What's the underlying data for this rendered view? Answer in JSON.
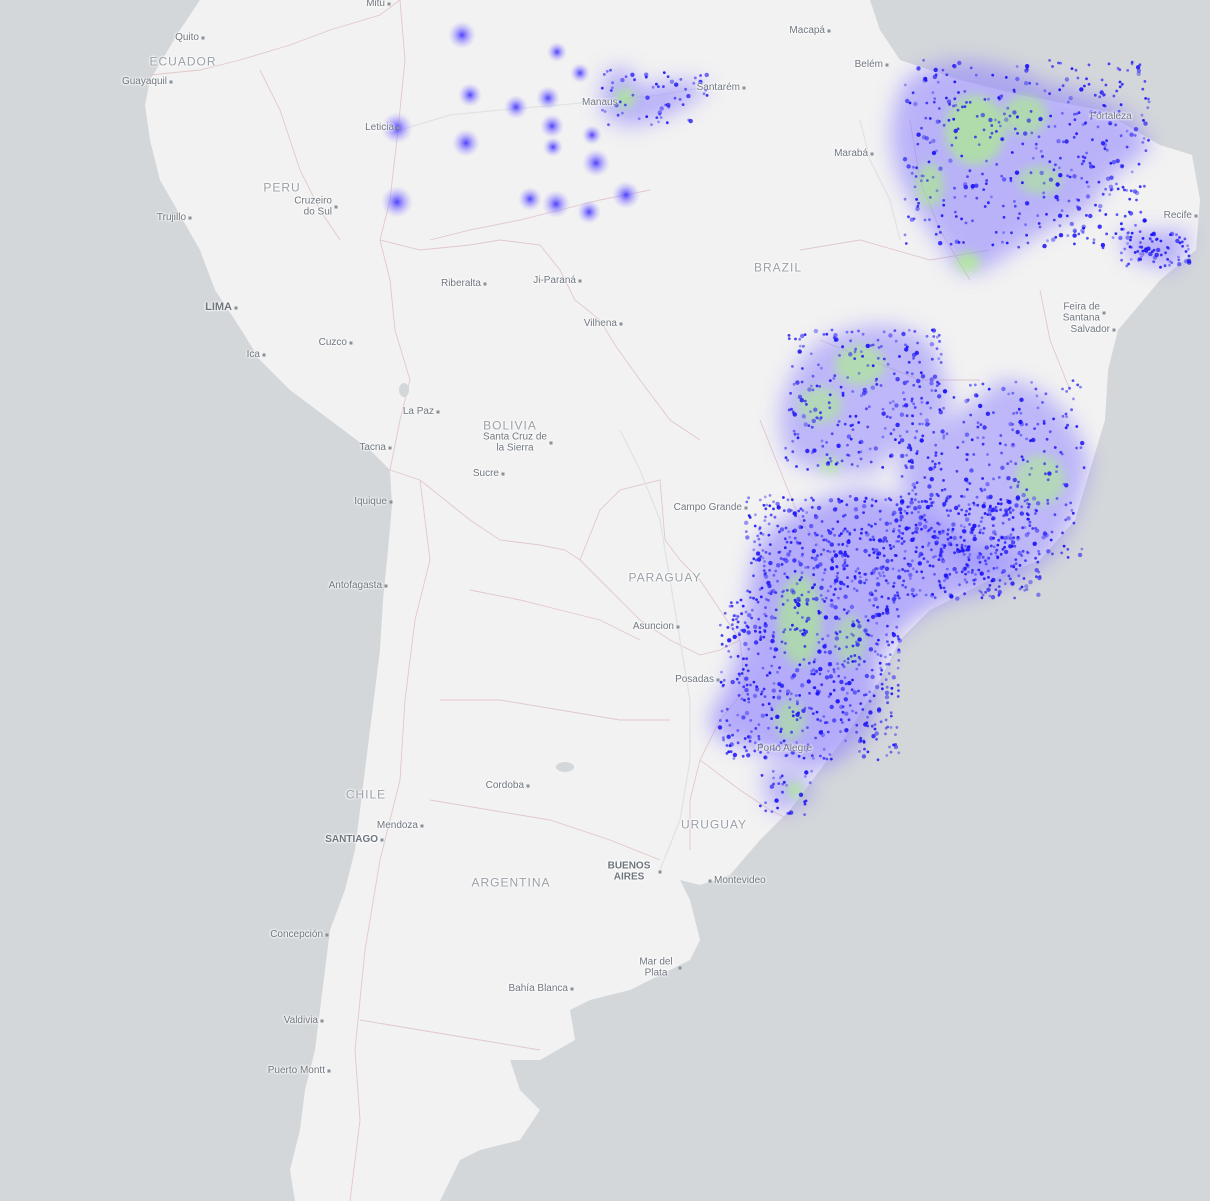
{
  "map": {
    "colors": {
      "ocean": "#d4d7da",
      "land": "#f2f2f2",
      "border": "#e1c7cd",
      "heat_low": "#7a6cff",
      "heat_mid": "#a8ff6a",
      "point": "#1a12f5"
    },
    "countries": [
      {
        "id": "ecuador",
        "name": "ECUADOR"
      },
      {
        "id": "peru",
        "name": "PERU"
      },
      {
        "id": "brazil",
        "name": "BRAZIL"
      },
      {
        "id": "bolivia",
        "name": "BOLIVIA"
      },
      {
        "id": "paraguay",
        "name": "PARAGUAY"
      },
      {
        "id": "chile",
        "name": "CHILE"
      },
      {
        "id": "argentina",
        "name": "ARGENTINA"
      },
      {
        "id": "uruguay",
        "name": "URUGUAY"
      }
    ],
    "cities": [
      {
        "id": "mitu",
        "name": "Mitú",
        "capital": false
      },
      {
        "id": "quito",
        "name": "Quito",
        "capital": false
      },
      {
        "id": "guayaquil",
        "name": "Guayaquil",
        "capital": false
      },
      {
        "id": "leticia",
        "name": "Leticia",
        "capital": false
      },
      {
        "id": "manaus",
        "name": "Manaus",
        "capital": false
      },
      {
        "id": "santarem",
        "name": "Santarém",
        "capital": false
      },
      {
        "id": "macapa",
        "name": "Macapá",
        "capital": false
      },
      {
        "id": "belem",
        "name": "Belém",
        "capital": false
      },
      {
        "id": "maraba",
        "name": "Marabá",
        "capital": false
      },
      {
        "id": "fortaleza",
        "name": "Fortaleza",
        "capital": false
      },
      {
        "id": "recife",
        "name": "Recife",
        "capital": false
      },
      {
        "id": "cruzeiro",
        "name": "Cruzeiro do Sul",
        "capital": false
      },
      {
        "id": "trujillo",
        "name": "Trujillo",
        "capital": false
      },
      {
        "id": "lima",
        "name": "LIMA",
        "capital": true
      },
      {
        "id": "ica",
        "name": "Ica",
        "capital": false
      },
      {
        "id": "cuzco",
        "name": "Cuzco",
        "capital": false
      },
      {
        "id": "riberalta",
        "name": "Riberalta",
        "capital": false
      },
      {
        "id": "jiparana",
        "name": "Ji-Paraná",
        "capital": false
      },
      {
        "id": "vilhena",
        "name": "Vilhena",
        "capital": false
      },
      {
        "id": "feira",
        "name": "Feira de Santana",
        "capital": false
      },
      {
        "id": "salvador",
        "name": "Salvador",
        "capital": false
      },
      {
        "id": "lapaz",
        "name": "La Paz",
        "capital": false
      },
      {
        "id": "santacruz",
        "name": "Santa Cruz de la Sierra",
        "capital": false
      },
      {
        "id": "tacna",
        "name": "Tacna",
        "capital": false
      },
      {
        "id": "sucre",
        "name": "Sucre",
        "capital": false
      },
      {
        "id": "iquique",
        "name": "Iquique",
        "capital": false
      },
      {
        "id": "campogrande",
        "name": "Campo Grande",
        "capital": false
      },
      {
        "id": "antofagasta",
        "name": "Antofagasta",
        "capital": false
      },
      {
        "id": "asuncion",
        "name": "Asuncion",
        "capital": false
      },
      {
        "id": "posadas",
        "name": "Posadas",
        "capital": false
      },
      {
        "id": "portoalegre",
        "name": "Porto Alegre",
        "capital": false
      },
      {
        "id": "cordoba",
        "name": "Cordoba",
        "capital": false
      },
      {
        "id": "mendoza",
        "name": "Mendoza",
        "capital": false
      },
      {
        "id": "santiago",
        "name": "SANTIAGO",
        "capital": true
      },
      {
        "id": "buenosaires",
        "name": "BUENOS AIRES",
        "capital": true
      },
      {
        "id": "montevideo",
        "name": "Montevideo",
        "capital": false
      },
      {
        "id": "concepcion",
        "name": "Concepción",
        "capital": false
      },
      {
        "id": "mardelplata",
        "name": "Mar del Plata",
        "capital": false
      },
      {
        "id": "bahiablanca",
        "name": "Bahía Blanca",
        "capital": false
      },
      {
        "id": "valdivia",
        "name": "Valdivia",
        "capital": false
      },
      {
        "id": "puertomontt",
        "name": "Puerto Montt",
        "capital": false
      }
    ]
  }
}
